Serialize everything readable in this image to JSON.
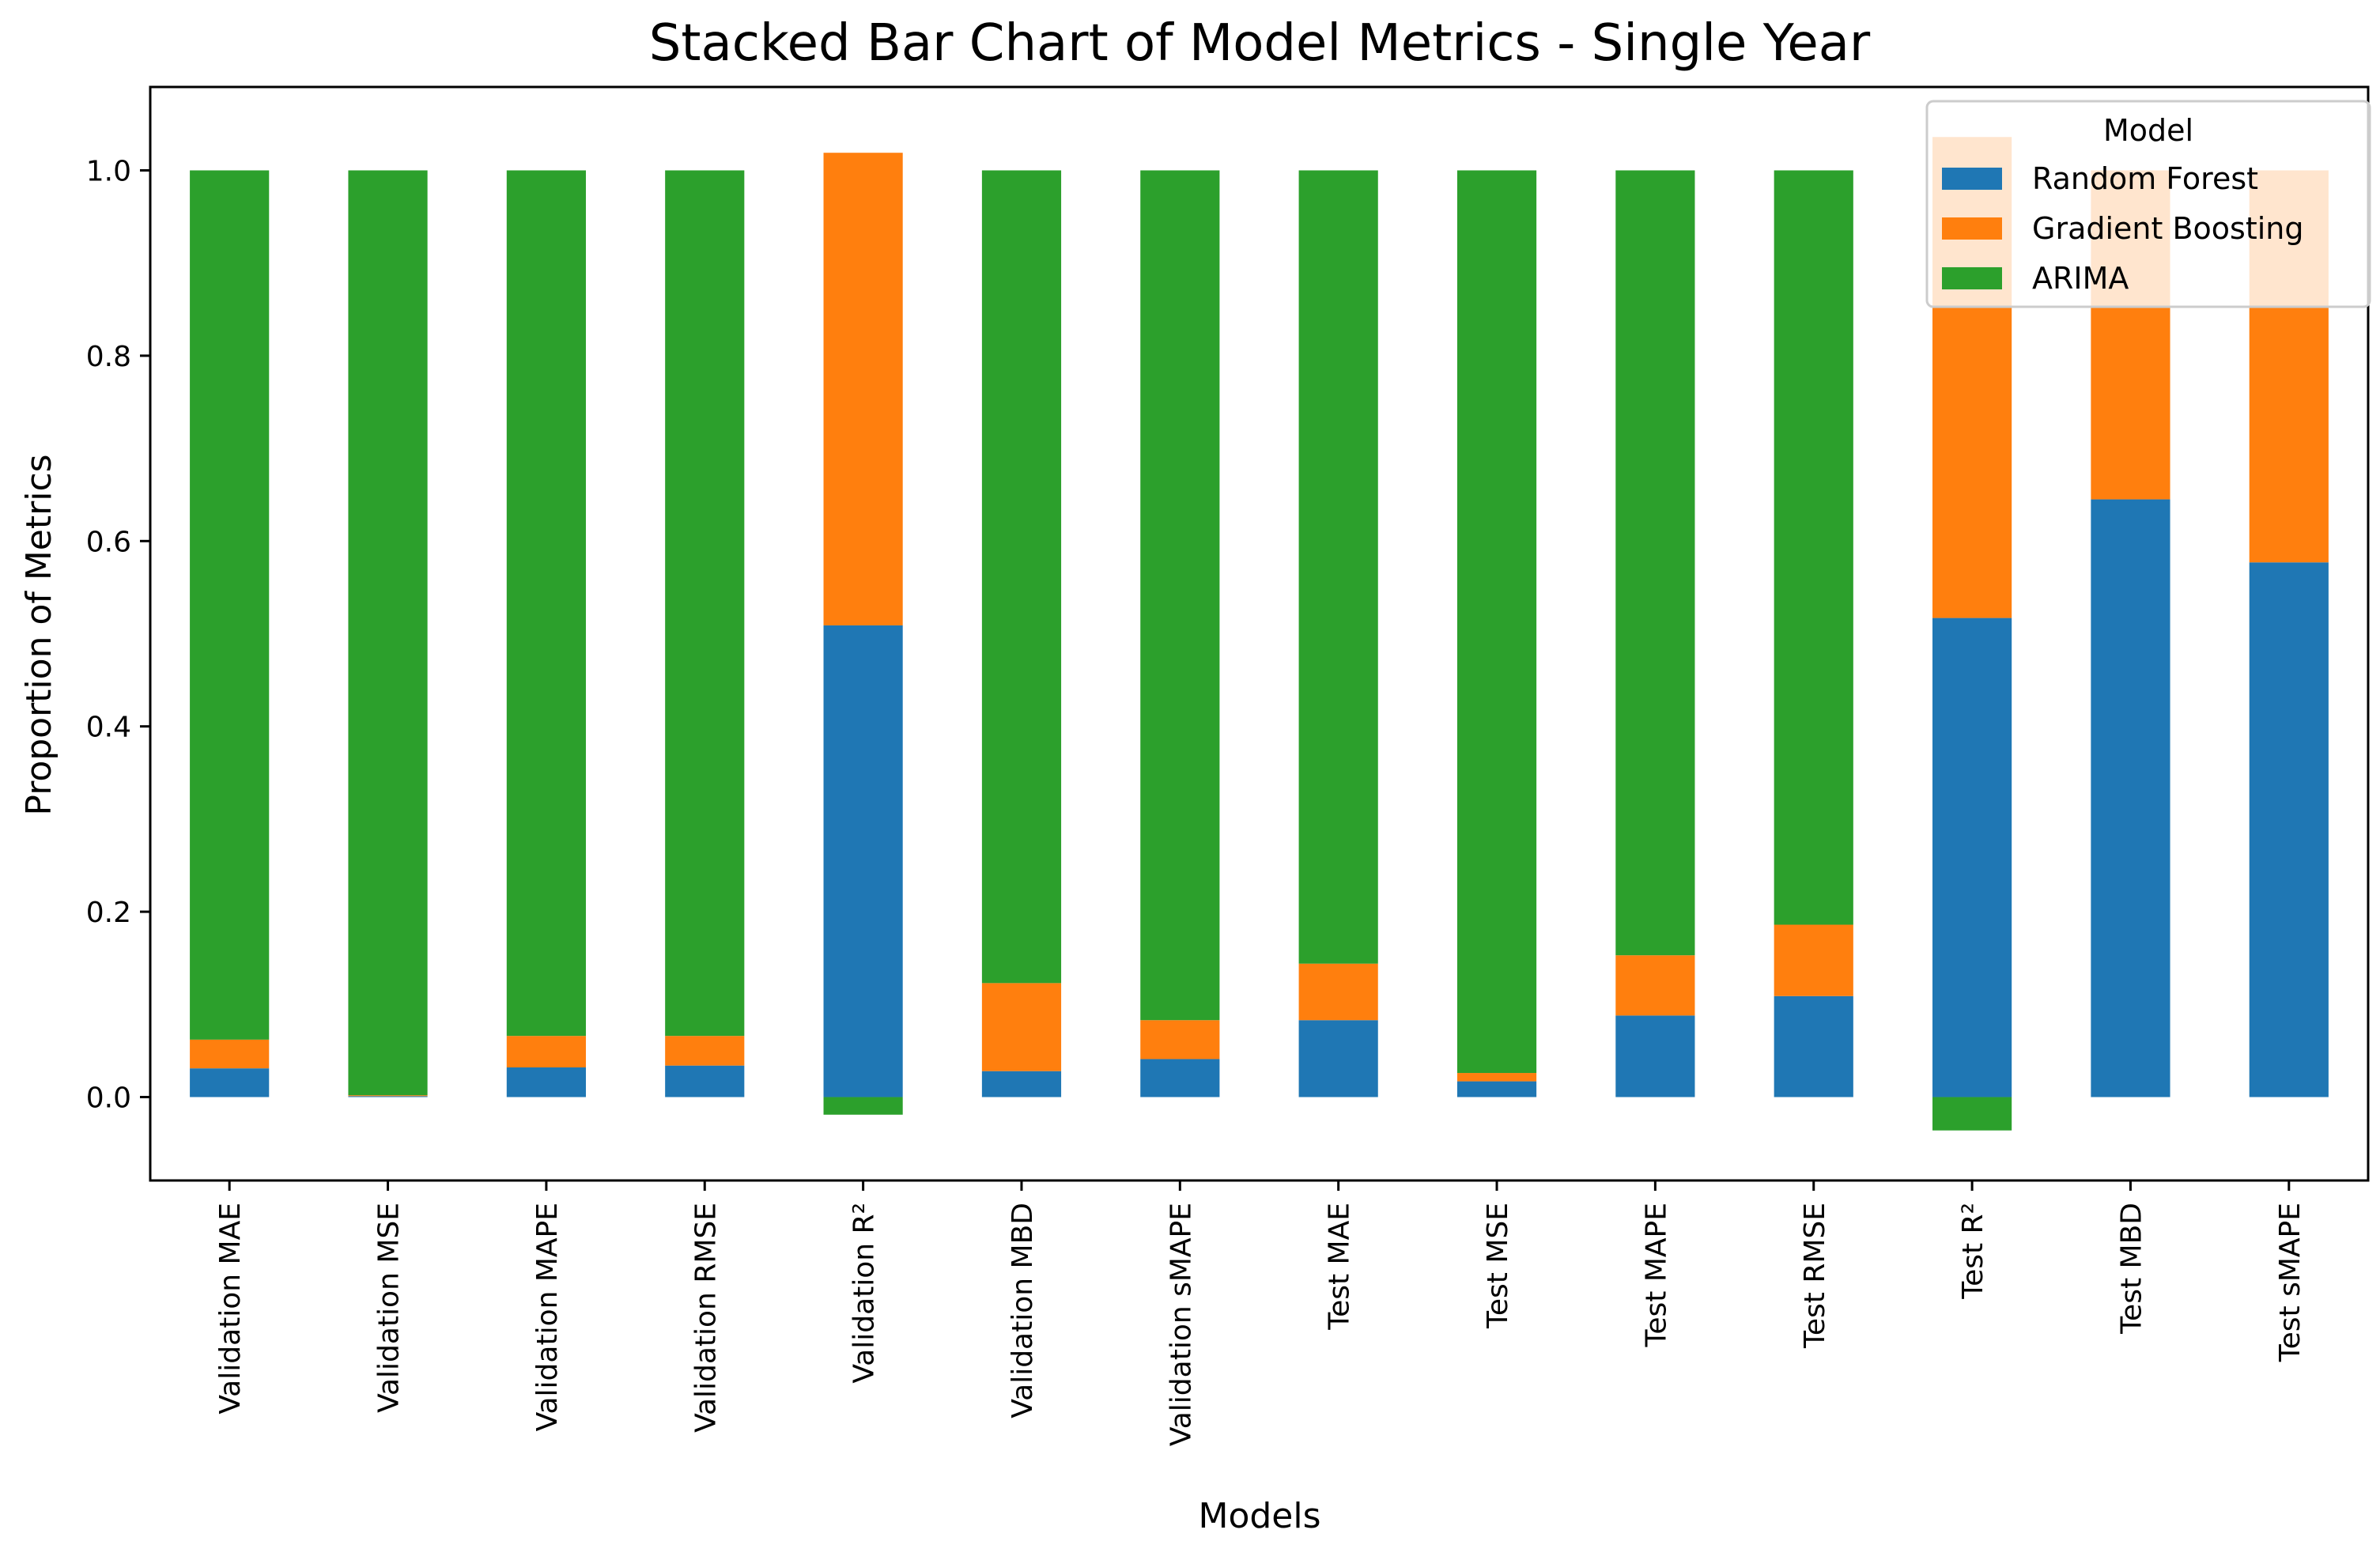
{
  "chart_data": {
    "type": "bar",
    "stacked": true,
    "title": "Stacked Bar Chart of Model Metrics - Single Year",
    "xlabel": "Models",
    "ylabel": "Proportion of Metrics",
    "ylim": [
      -0.09,
      1.09
    ],
    "yticks": [
      "0.0",
      "0.2",
      "0.4",
      "0.6",
      "0.8",
      "1.0"
    ],
    "grid": false,
    "legend": {
      "title": "Model",
      "position": "top-right"
    },
    "categories": [
      "Validation MAE",
      "Validation MSE",
      "Validation MAPE",
      "Validation RMSE",
      "Validation R²",
      "Validation MBD",
      "Validation sMAPE",
      "Test MAE",
      "Test MSE",
      "Test MAPE",
      "Test RMSE",
      "Test R²",
      "Test MBD",
      "Test sMAPE"
    ],
    "series": [
      {
        "name": "Random Forest",
        "color": "#1f77b4",
        "values": [
          0.031,
          0.001,
          0.032,
          0.034,
          0.509,
          0.028,
          0.041,
          0.083,
          0.017,
          0.088,
          0.109,
          0.517,
          0.645,
          0.577
        ]
      },
      {
        "name": "Gradient Boosting",
        "color": "#ff7f0e",
        "values": [
          0.031,
          0.001,
          0.034,
          0.032,
          0.51,
          0.095,
          0.042,
          0.061,
          0.009,
          0.065,
          0.077,
          0.519,
          0.355,
          0.423
        ]
      },
      {
        "name": "ARIMA",
        "color": "#2ca02c",
        "values": [
          0.938,
          0.998,
          0.934,
          0.934,
          -0.019,
          0.877,
          0.917,
          0.856,
          0.974,
          0.847,
          0.814,
          -0.036,
          0.0,
          0.0
        ]
      }
    ]
  }
}
